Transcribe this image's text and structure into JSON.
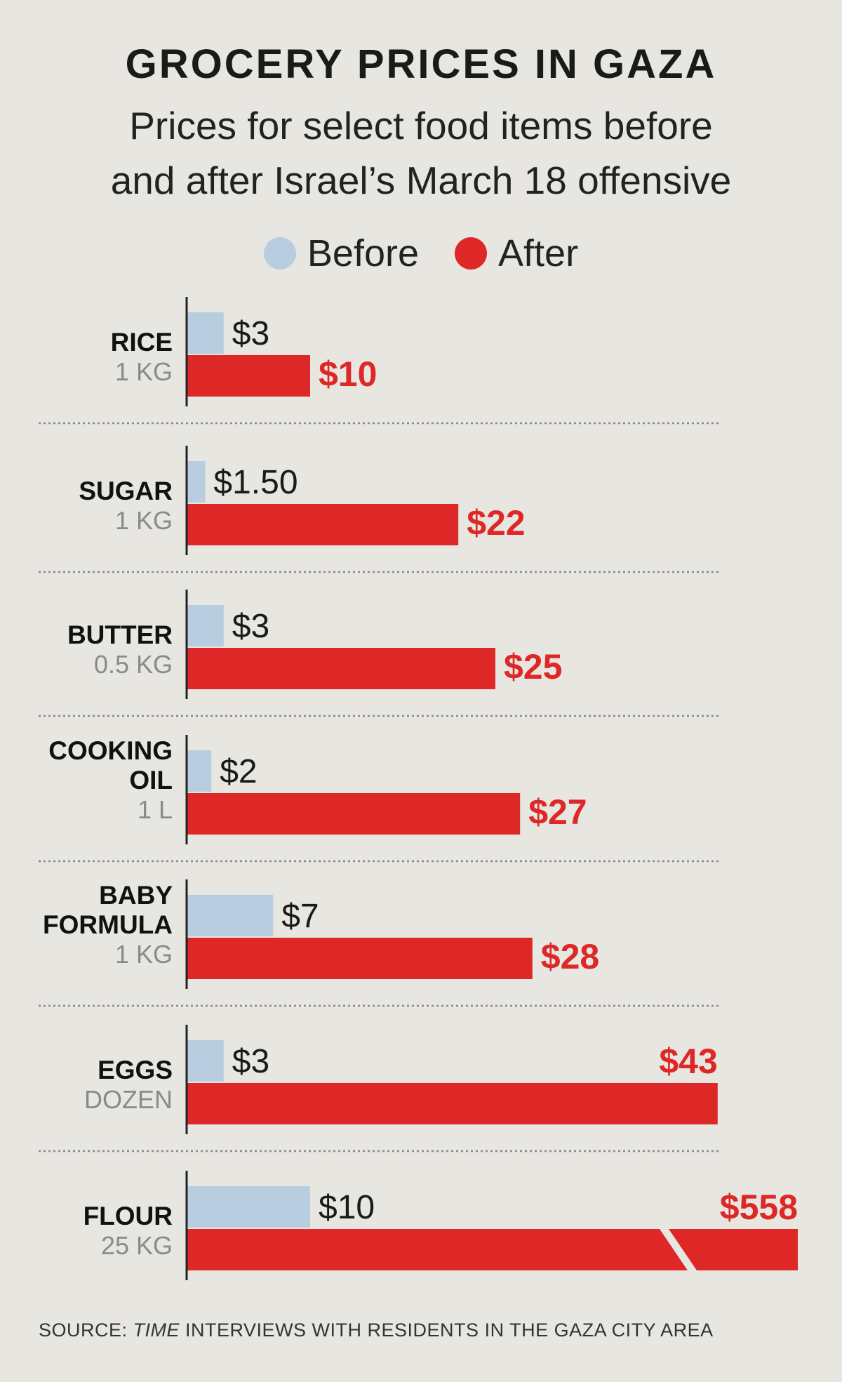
{
  "chart_data": {
    "type": "bar",
    "title": "GROCERY PRICES IN GAZA",
    "subtitle_lines": [
      "Prices for select food items before",
      "and after Israel’s March 18 offensive"
    ],
    "legend": [
      {
        "label": "Before",
        "color": "#b8cde0"
      },
      {
        "label": "After",
        "color": "#de2727"
      }
    ],
    "categories": [
      {
        "name_lines": [
          "RICE"
        ],
        "unit": "1 KG"
      },
      {
        "name_lines": [
          "SUGAR"
        ],
        "unit": "1 KG"
      },
      {
        "name_lines": [
          "BUTTER"
        ],
        "unit": "0.5 KG"
      },
      {
        "name_lines": [
          "COOKING",
          "OIL"
        ],
        "unit": "1 L"
      },
      {
        "name_lines": [
          "BABY",
          "FORMULA"
        ],
        "unit": "1 KG"
      },
      {
        "name_lines": [
          "EGGS"
        ],
        "unit": "DOZEN"
      },
      {
        "name_lines": [
          "FLOUR"
        ],
        "unit": "25 KG"
      }
    ],
    "series": [
      {
        "name": "Before",
        "values": [
          3,
          1.5,
          3,
          2,
          7,
          3,
          10
        ],
        "labels": [
          "$3",
          "$1.50",
          "$3",
          "$2",
          "$7",
          "$3",
          "$10"
        ]
      },
      {
        "name": "After",
        "values": [
          10,
          22,
          25,
          27,
          28,
          43,
          558
        ],
        "labels": [
          "$10",
          "$22",
          "$25",
          "$27",
          "$28",
          "$43",
          "$558"
        ]
      }
    ],
    "axis_break_on": "FLOUR",
    "colors": {
      "before": "#b8cde0",
      "after": "#de2727",
      "axis": "#222222",
      "divider": "#888888",
      "background": "#e8e6e1"
    }
  },
  "source": {
    "prefix": "SOURCE: ",
    "italic": "TIME",
    "rest": " INTERVIEWS WITH RESIDENTS IN THE GAZA CITY AREA"
  }
}
